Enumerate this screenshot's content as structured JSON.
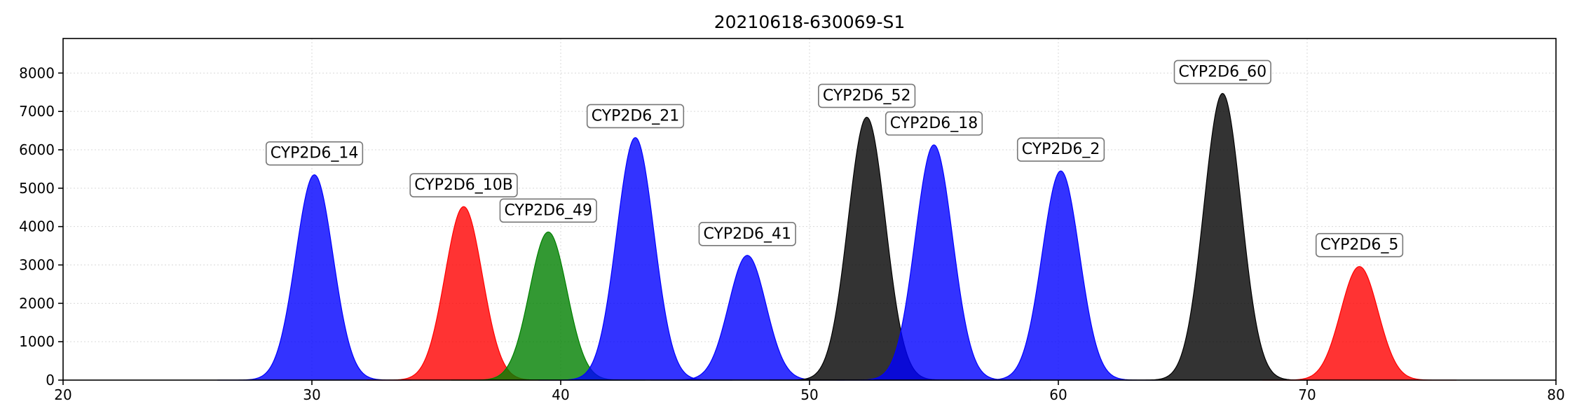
{
  "chart_data": {
    "type": "area",
    "title": "20210618-630069-S1",
    "xlabel": "",
    "ylabel": "",
    "xlim": [
      20,
      80
    ],
    "ylim": [
      0,
      8900
    ],
    "x_ticks": [
      20,
      30,
      40,
      50,
      60,
      70,
      80
    ],
    "y_ticks": [
      0,
      1000,
      2000,
      3000,
      4000,
      5000,
      6000,
      7000,
      8000
    ],
    "grid": true,
    "peaks": [
      {
        "label": "CYP2D6_14",
        "x": 30.1,
        "y": 5350,
        "sigma": 0.75,
        "color": "#0000ff"
      },
      {
        "label": "CYP2D6_10B",
        "x": 36.1,
        "y": 4520,
        "sigma": 0.75,
        "color": "#ff0000"
      },
      {
        "label": "CYP2D6_49",
        "x": 39.5,
        "y": 3860,
        "sigma": 0.75,
        "color": "#008000"
      },
      {
        "label": "CYP2D6_21",
        "x": 43.0,
        "y": 6320,
        "sigma": 0.75,
        "color": "#0000ff"
      },
      {
        "label": "CYP2D6_41",
        "x": 47.5,
        "y": 3250,
        "sigma": 0.75,
        "color": "#0000ff"
      },
      {
        "label": "CYP2D6_52",
        "x": 52.3,
        "y": 6850,
        "sigma": 0.75,
        "color": "#000000"
      },
      {
        "label": "CYP2D6_18",
        "x": 55.0,
        "y": 6130,
        "sigma": 0.75,
        "color": "#0000ff"
      },
      {
        "label": "CYP2D6_2",
        "x": 60.1,
        "y": 5450,
        "sigma": 0.75,
        "color": "#0000ff"
      },
      {
        "label": "CYP2D6_60",
        "x": 66.6,
        "y": 7470,
        "sigma": 0.75,
        "color": "#000000"
      },
      {
        "label": "CYP2D6_5",
        "x": 72.1,
        "y": 2960,
        "sigma": 0.75,
        "color": "#ff0000"
      }
    ],
    "fill_opacity": 0.8
  }
}
